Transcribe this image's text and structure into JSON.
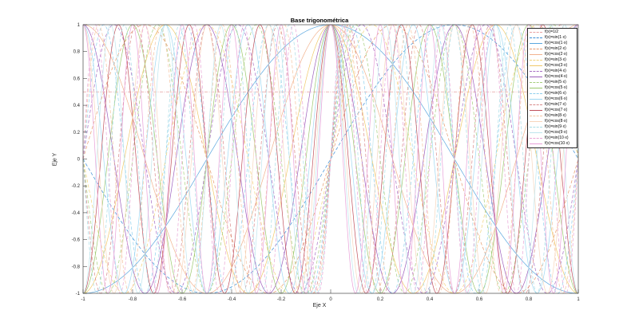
{
  "chart_data": {
    "type": "line",
    "title": "Base trigonométrica",
    "xlabel": "Eje X",
    "ylabel": "Eje Y",
    "xlim": [
      -1,
      1
    ],
    "ylim": [
      -1,
      1
    ],
    "grid": false,
    "legend_position": "northeast",
    "xticks": [
      "-1",
      "-0.8",
      "-0.6",
      "-0.4",
      "-0.2",
      "0",
      "0.2",
      "0.4",
      "0.6",
      "0.8",
      "1"
    ],
    "yticks": [
      "-1",
      "-0.8",
      "-0.6",
      "-0.4",
      "-0.2",
      "0",
      "0.2",
      "0.4",
      "0.6",
      "0.8",
      "1"
    ],
    "series": [
      {
        "name": "f(x)=1/2",
        "fn": "const",
        "k": 0,
        "style": "dashdot",
        "color": "#e8a0a0"
      },
      {
        "name": "f(x)=sin(1·x)",
        "fn": "sin",
        "k": 1,
        "style": "dashed",
        "color": "#3d8fd6"
      },
      {
        "name": "f(x)=cos(1·x)",
        "fn": "cos",
        "k": 1,
        "style": "solid",
        "color": "#5aa7df"
      },
      {
        "name": "f(x)=sin(2·x)",
        "fn": "sin",
        "k": 2,
        "style": "dashed",
        "color": "#e79b6e"
      },
      {
        "name": "f(x)=cos(2·x)",
        "fn": "cos",
        "k": 2,
        "style": "solid",
        "color": "#f2b38f"
      },
      {
        "name": "f(x)=sin(3·x)",
        "fn": "sin",
        "k": 3,
        "style": "dashed",
        "color": "#f2d37a"
      },
      {
        "name": "f(x)=cos(3·x)",
        "fn": "cos",
        "k": 3,
        "style": "solid",
        "color": "#f0c96a"
      },
      {
        "name": "f(x)=sin(4·x)",
        "fn": "sin",
        "k": 4,
        "style": "dashed",
        "color": "#a66ec4"
      },
      {
        "name": "f(x)=cos(4·x)",
        "fn": "cos",
        "k": 4,
        "style": "solid",
        "color": "#9d5fbd"
      },
      {
        "name": "f(x)=sin(5·x)",
        "fn": "sin",
        "k": 5,
        "style": "dashed",
        "color": "#a7cf7c"
      },
      {
        "name": "f(x)=cos(5·x)",
        "fn": "cos",
        "k": 5,
        "style": "solid",
        "color": "#9cc86e"
      },
      {
        "name": "f(x)=sin(6·x)",
        "fn": "sin",
        "k": 6,
        "style": "dashed",
        "color": "#8fd0ee"
      },
      {
        "name": "f(x)=cos(6·x)",
        "fn": "cos",
        "k": 6,
        "style": "solid",
        "color": "#9fd8f2"
      },
      {
        "name": "f(x)=sin(7·x)",
        "fn": "sin",
        "k": 7,
        "style": "dashed",
        "color": "#d98a8a"
      },
      {
        "name": "f(x)=cos(7·x)",
        "fn": "cos",
        "k": 7,
        "style": "solid",
        "color": "#c0505c"
      },
      {
        "name": "f(x)=sin(8·x)",
        "fn": "sin",
        "k": 8,
        "style": "dashed",
        "color": "#f4c4a0"
      },
      {
        "name": "f(x)=cos(8·x)",
        "fn": "cos",
        "k": 8,
        "style": "solid",
        "color": "#f7d6bd"
      },
      {
        "name": "f(x)=sin(9·x)",
        "fn": "sin",
        "k": 9,
        "style": "dashed",
        "color": "#a8dde6"
      },
      {
        "name": "f(x)=cos(9·x)",
        "fn": "cos",
        "k": 9,
        "style": "solid",
        "color": "#bfe6ee"
      },
      {
        "name": "f(x)=sin(10·x)",
        "fn": "sin",
        "k": 10,
        "style": "dashed",
        "color": "#e9a6d6"
      },
      {
        "name": "f(x)=cos(10·x)",
        "fn": "cos",
        "k": 10,
        "style": "solid",
        "color": "#e8a0d8"
      }
    ],
    "x_scale_note": "argument is k*pi*x"
  }
}
